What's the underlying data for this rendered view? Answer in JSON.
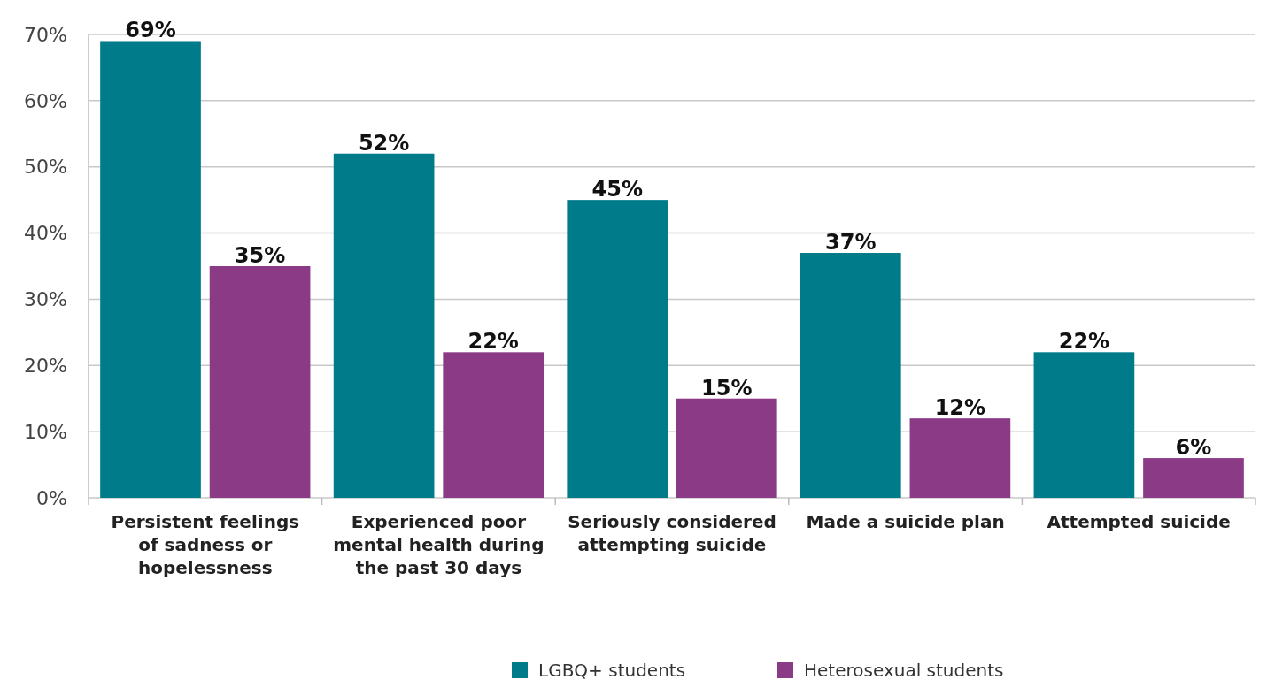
{
  "chart_data": {
    "type": "bar",
    "categories": [
      "Persistent feelings of sadness or hopelessness",
      "Experienced poor mental health during the past 30 days",
      "Seriously considered attempting suicide",
      "Made a suicide plan",
      "Attempted suicide"
    ],
    "series": [
      {
        "name": "LGBQ+ students",
        "color": "#007b8a",
        "values": [
          69,
          52,
          45,
          37,
          22
        ],
        "value_labels": [
          "69%",
          "52%",
          "45%",
          "37%",
          "22%"
        ]
      },
      {
        "name": "Heterosexual students",
        "color": "#8b3a86",
        "values": [
          35,
          22,
          15,
          12,
          6
        ],
        "value_labels": [
          "35%",
          "22%",
          "15%",
          "12%",
          "6%"
        ]
      }
    ],
    "ylim": [
      0,
      70
    ],
    "yticks": [
      {
        "value": 0,
        "label": "0%"
      },
      {
        "value": 10,
        "label": "10%"
      },
      {
        "value": 20,
        "label": "20%"
      },
      {
        "value": 30,
        "label": "30%"
      },
      {
        "value": 40,
        "label": "40%"
      },
      {
        "value": 50,
        "label": "50%"
      },
      {
        "value": 60,
        "label": "60%"
      },
      {
        "value": 70,
        "label": "70%"
      }
    ],
    "grid": "y",
    "legend": "bottom"
  }
}
